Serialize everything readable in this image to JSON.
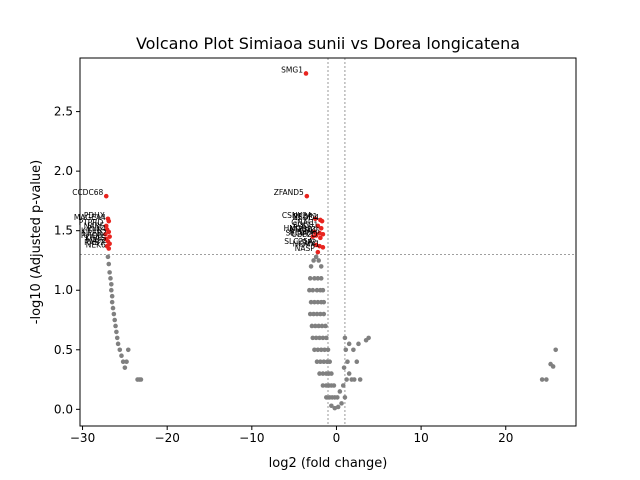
{
  "chart_data": {
    "type": "scatter",
    "title": "Volcano Plot Simiaoa sunii vs Dorea longicatena",
    "xlabel": "log2 (fold change)",
    "ylabel": "-log10 (Adjusted p-value)",
    "xlim": [
      -30.3,
      28.3
    ],
    "ylim": [
      -0.14,
      2.95
    ],
    "xticks": [
      -30,
      -20,
      -10,
      0,
      10,
      20
    ],
    "yticks": [
      0.0,
      0.5,
      1.0,
      1.5,
      2.0,
      2.5
    ],
    "xtick_labels": [
      "−30",
      "−20",
      "−10",
      "0",
      "10",
      "20"
    ],
    "ytick_labels": [
      "0.0",
      "0.5",
      "1.0",
      "1.5",
      "2.0",
      "2.5"
    ],
    "thresholds": {
      "vlines": [
        -1,
        1
      ],
      "hline": 1.3
    },
    "colors": {
      "significant": "#e8241f",
      "other": "#808080",
      "threshold": "#808080"
    },
    "significant_points": [
      {
        "label": "SMG1",
        "x": -3.6,
        "y": 2.82
      },
      {
        "label": "CCDC68",
        "x": -27.2,
        "y": 1.79
      },
      {
        "label": "ZFAND5",
        "x": -3.5,
        "y": 1.79
      },
      {
        "label": "PDHX",
        "x": -27.0,
        "y": 1.6
      },
      {
        "label": "MAGEA4",
        "x": -26.9,
        "y": 1.58
      },
      {
        "label": "PTPRD",
        "x": -27.2,
        "y": 1.54
      },
      {
        "label": "NARF",
        "x": -27.1,
        "y": 1.51
      },
      {
        "label": "PLK4",
        "x": -26.9,
        "y": 1.49
      },
      {
        "label": "KIF1B",
        "x": -27.3,
        "y": 1.47
      },
      {
        "label": "CPEB2",
        "x": -26.8,
        "y": 1.45
      },
      {
        "label": "RHOH",
        "x": -27.2,
        "y": 1.43
      },
      {
        "label": "KRAS",
        "x": -27.0,
        "y": 1.41
      },
      {
        "label": "MAP2",
        "x": -26.8,
        "y": 1.39
      },
      {
        "label": "RAB7",
        "x": -27.1,
        "y": 1.37
      },
      {
        "label": "NEK6",
        "x": -26.9,
        "y": 1.35
      },
      {
        "label": "CSNK2A",
        "x": -2.5,
        "y": 1.6
      },
      {
        "label": "PEBP1",
        "x": -1.9,
        "y": 1.59
      },
      {
        "label": "NEDD4",
        "x": -1.7,
        "y": 1.58
      },
      {
        "label": "GNAI1",
        "x": -2.2,
        "y": 1.54
      },
      {
        "label": "SOCS1",
        "x": -1.8,
        "y": 1.52
      },
      {
        "label": "HMGB2",
        "x": -2.6,
        "y": 1.49
      },
      {
        "label": "ATP5F1",
        "x": -2.0,
        "y": 1.48
      },
      {
        "label": "CDK6",
        "x": -1.6,
        "y": 1.47
      },
      {
        "label": "RPL13",
        "x": -2.4,
        "y": 1.46
      },
      {
        "label": "SEC61",
        "x": -2.8,
        "y": 1.45
      },
      {
        "label": "UBE2D",
        "x": -1.9,
        "y": 1.44
      },
      {
        "label": "SLC25A",
        "x": -2.4,
        "y": 1.38
      },
      {
        "label": "LRP2",
        "x": -2.0,
        "y": 1.37
      },
      {
        "label": "NCAM1",
        "x": -1.6,
        "y": 1.36
      },
      {
        "label": "NASP",
        "x": -2.2,
        "y": 1.32
      }
    ],
    "nonsignificant_points": [
      [
        -27.0,
        1.28
      ],
      [
        -26.9,
        1.22
      ],
      [
        -26.8,
        1.15
      ],
      [
        -26.7,
        1.1
      ],
      [
        -26.6,
        1.05
      ],
      [
        -26.6,
        1.0
      ],
      [
        -26.5,
        0.95
      ],
      [
        -26.5,
        0.9
      ],
      [
        -26.4,
        0.85
      ],
      [
        -26.3,
        0.8
      ],
      [
        -26.2,
        0.75
      ],
      [
        -26.1,
        0.7
      ],
      [
        -26.0,
        0.65
      ],
      [
        -25.9,
        0.6
      ],
      [
        -25.8,
        0.55
      ],
      [
        -25.6,
        0.5
      ],
      [
        -25.4,
        0.45
      ],
      [
        -25.2,
        0.4
      ],
      [
        -25.0,
        0.35
      ],
      [
        -24.8,
        0.4
      ],
      [
        -24.6,
        0.5
      ],
      [
        -23.5,
        0.25
      ],
      [
        -23.3,
        0.25
      ],
      [
        -23.1,
        0.25
      ],
      [
        -3.0,
        1.2
      ],
      [
        -2.7,
        1.25
      ],
      [
        -2.4,
        1.28
      ],
      [
        -2.1,
        1.25
      ],
      [
        -1.8,
        1.2
      ],
      [
        -3.1,
        1.1
      ],
      [
        -2.6,
        1.1
      ],
      [
        -2.2,
        1.1
      ],
      [
        -1.8,
        1.1
      ],
      [
        -3.2,
        1.0
      ],
      [
        -2.8,
        1.0
      ],
      [
        -2.3,
        1.0
      ],
      [
        -1.9,
        1.0
      ],
      [
        -1.6,
        1.0
      ],
      [
        -3.0,
        0.9
      ],
      [
        -2.6,
        0.9
      ],
      [
        -2.2,
        0.9
      ],
      [
        -1.8,
        0.9
      ],
      [
        -1.5,
        0.9
      ],
      [
        -3.1,
        0.8
      ],
      [
        -2.7,
        0.8
      ],
      [
        -2.3,
        0.8
      ],
      [
        -1.9,
        0.8
      ],
      [
        -1.5,
        0.8
      ],
      [
        -2.9,
        0.7
      ],
      [
        -2.5,
        0.7
      ],
      [
        -2.1,
        0.7
      ],
      [
        -1.7,
        0.7
      ],
      [
        -1.3,
        0.7
      ],
      [
        -2.8,
        0.6
      ],
      [
        -2.4,
        0.6
      ],
      [
        -2.0,
        0.6
      ],
      [
        -1.6,
        0.6
      ],
      [
        -1.2,
        0.6
      ],
      [
        -2.6,
        0.5
      ],
      [
        -2.2,
        0.5
      ],
      [
        -1.8,
        0.5
      ],
      [
        -1.4,
        0.5
      ],
      [
        -1.0,
        0.5
      ],
      [
        -2.3,
        0.4
      ],
      [
        -1.9,
        0.4
      ],
      [
        -1.5,
        0.4
      ],
      [
        -1.1,
        0.4
      ],
      [
        -0.8,
        0.4
      ],
      [
        -2.0,
        0.3
      ],
      [
        -1.6,
        0.3
      ],
      [
        -1.2,
        0.3
      ],
      [
        -0.9,
        0.3
      ],
      [
        -0.6,
        0.3
      ],
      [
        -1.6,
        0.2
      ],
      [
        -1.2,
        0.2
      ],
      [
        -0.9,
        0.2
      ],
      [
        -0.6,
        0.2
      ],
      [
        -0.3,
        0.2
      ],
      [
        -1.2,
        0.1
      ],
      [
        -0.8,
        0.1
      ],
      [
        -0.5,
        0.1
      ],
      [
        -0.2,
        0.1
      ],
      [
        0.1,
        0.1
      ],
      [
        -0.6,
        0.03
      ],
      [
        -0.2,
        0.01
      ],
      [
        0.2,
        0.02
      ],
      [
        0.6,
        0.05
      ],
      [
        1.0,
        0.1
      ],
      [
        0.4,
        0.15
      ],
      [
        0.8,
        0.2
      ],
      [
        1.2,
        0.25
      ],
      [
        1.5,
        0.3
      ],
      [
        1.8,
        0.25
      ],
      [
        0.9,
        0.35
      ],
      [
        1.3,
        0.4
      ],
      [
        2.1,
        0.25
      ],
      [
        2.4,
        0.4
      ],
      [
        1.1,
        0.5
      ],
      [
        1.5,
        0.55
      ],
      [
        2.0,
        0.5
      ],
      [
        2.6,
        0.55
      ],
      [
        1.0,
        0.6
      ],
      [
        3.8,
        0.6
      ],
      [
        3.5,
        0.58
      ],
      [
        2.8,
        0.25
      ],
      [
        24.3,
        0.25
      ],
      [
        24.8,
        0.25
      ],
      [
        25.3,
        0.38
      ],
      [
        25.6,
        0.36
      ],
      [
        25.9,
        0.5
      ]
    ]
  }
}
